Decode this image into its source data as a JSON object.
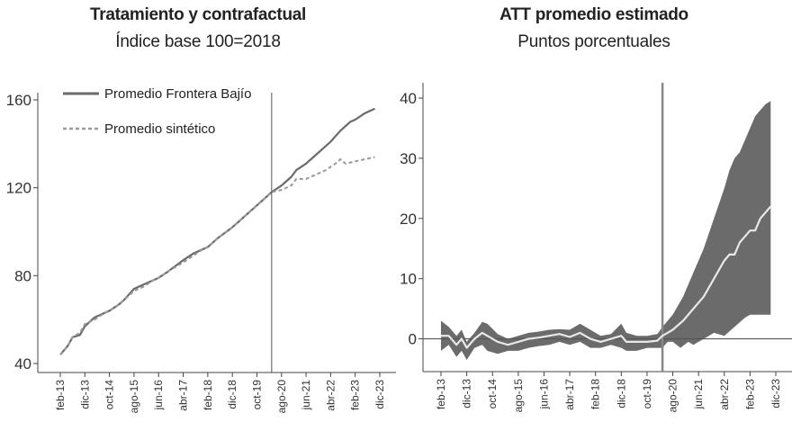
{
  "chart_data": [
    {
      "type": "line",
      "title": "Tratamiento y contrafactual",
      "subtitle": "Índice base 100=2018",
      "ylim": [
        40,
        160
      ],
      "yticks": [
        40,
        80,
        120,
        160
      ],
      "x_tick_labels": [
        "feb-13",
        "dic-13",
        "oct-14",
        "ago-15",
        "jun-16",
        "abr-17",
        "feb-18",
        "dic-18",
        "oct-19",
        "ago-20",
        "jun-21",
        "abr-22",
        "feb-23",
        "dic-23"
      ],
      "x_tick_positions": [
        0,
        10,
        20,
        30,
        40,
        50,
        60,
        70,
        80,
        90,
        100,
        110,
        120,
        130
      ],
      "vline_x": 86,
      "legend_position": "top-left",
      "series": [
        {
          "name": "Promedio Frontera Bajío",
          "style": "solid",
          "color": "#6a6a6a",
          "points": [
            [
              0,
              44
            ],
            [
              3,
              48
            ],
            [
              5,
              52
            ],
            [
              8,
              53
            ],
            [
              10,
              57
            ],
            [
              14,
              61
            ],
            [
              18,
              63
            ],
            [
              20,
              64
            ],
            [
              24,
              67
            ],
            [
              26,
              69
            ],
            [
              30,
              74
            ],
            [
              34,
              76
            ],
            [
              38,
              78
            ],
            [
              40,
              79
            ],
            [
              44,
              82
            ],
            [
              50,
              87
            ],
            [
              54,
              90
            ],
            [
              58,
              92
            ],
            [
              60,
              93
            ],
            [
              64,
              97
            ],
            [
              70,
              102
            ],
            [
              74,
              106
            ],
            [
              80,
              112
            ],
            [
              84,
              116
            ],
            [
              86,
              118
            ],
            [
              90,
              121
            ],
            [
              94,
              125
            ],
            [
              96,
              128
            ],
            [
              100,
              131
            ],
            [
              103,
              134
            ],
            [
              106,
              137
            ],
            [
              110,
              141
            ],
            [
              114,
              146
            ],
            [
              118,
              150
            ],
            [
              120,
              151
            ],
            [
              124,
              154
            ],
            [
              126,
              155
            ],
            [
              128,
              156
            ]
          ]
        },
        {
          "name": "Promedio sintético",
          "style": "dashed",
          "color": "#999999",
          "points": [
            [
              0,
              44
            ],
            [
              3,
              48
            ],
            [
              5,
              52
            ],
            [
              8,
              54
            ],
            [
              10,
              58
            ],
            [
              14,
              60
            ],
            [
              18,
              63
            ],
            [
              20,
              64
            ],
            [
              24,
              67
            ],
            [
              26,
              69
            ],
            [
              30,
              73
            ],
            [
              34,
              75
            ],
            [
              38,
              78
            ],
            [
              40,
              79
            ],
            [
              44,
              82
            ],
            [
              50,
              86
            ],
            [
              54,
              89
            ],
            [
              58,
              92
            ],
            [
              60,
              93
            ],
            [
              64,
              97
            ],
            [
              70,
              102
            ],
            [
              74,
              106
            ],
            [
              80,
              112
            ],
            [
              84,
              116
            ],
            [
              86,
              118
            ],
            [
              90,
              119
            ],
            [
              94,
              121
            ],
            [
              96,
              124
            ],
            [
              100,
              124
            ],
            [
              104,
              126
            ],
            [
              108,
              128
            ],
            [
              112,
              131
            ],
            [
              114,
              133
            ],
            [
              116,
              131
            ],
            [
              120,
              132
            ],
            [
              124,
              133
            ],
            [
              128,
              134
            ]
          ]
        }
      ]
    },
    {
      "type": "area",
      "title": "ATT promedio estimado",
      "subtitle": "Puntos porcentuales",
      "ylim": [
        -5,
        40
      ],
      "yticks": [
        0,
        10,
        20,
        30,
        40
      ],
      "x_tick_labels": [
        "feb-13",
        "dic-13",
        "oct-14",
        "ago-15",
        "jun-16",
        "abr-17",
        "feb-18",
        "dic-18",
        "oct-19",
        "ago-20",
        "jun-21",
        "abr-22",
        "feb-23",
        "dic-23"
      ],
      "x_tick_positions": [
        0,
        10,
        20,
        30,
        40,
        50,
        60,
        70,
        80,
        90,
        100,
        110,
        120,
        130
      ],
      "vline_x": 86,
      "hline_y": 0,
      "band_color": "#6b6b6b",
      "band_upper": [
        [
          0,
          3
        ],
        [
          3,
          2
        ],
        [
          6,
          0.5
        ],
        [
          8,
          1.5
        ],
        [
          10,
          -0.5
        ],
        [
          13,
          1
        ],
        [
          16,
          2.8
        ],
        [
          18,
          2.5
        ],
        [
          22,
          0.8
        ],
        [
          26,
          0
        ],
        [
          30,
          0.5
        ],
        [
          34,
          1
        ],
        [
          38,
          1.2
        ],
        [
          42,
          1.5
        ],
        [
          46,
          1.6
        ],
        [
          50,
          1.5
        ],
        [
          54,
          2.5
        ],
        [
          58,
          1.5
        ],
        [
          62,
          0.5
        ],
        [
          66,
          0.8
        ],
        [
          70,
          2.5
        ],
        [
          72,
          1
        ],
        [
          76,
          0.5
        ],
        [
          80,
          0.5
        ],
        [
          84,
          0.8
        ],
        [
          86,
          2
        ],
        [
          90,
          4
        ],
        [
          94,
          7
        ],
        [
          98,
          11
        ],
        [
          102,
          15
        ],
        [
          106,
          20
        ],
        [
          110,
          25
        ],
        [
          112,
          28
        ],
        [
          114,
          30
        ],
        [
          116,
          31
        ],
        [
          118,
          33
        ],
        [
          120,
          35
        ],
        [
          122,
          37
        ],
        [
          124,
          38
        ],
        [
          126,
          39
        ],
        [
          128,
          39.5
        ]
      ],
      "band_lower": [
        [
          0,
          -2
        ],
        [
          3,
          -1
        ],
        [
          6,
          -3
        ],
        [
          8,
          -2
        ],
        [
          10,
          -3.5
        ],
        [
          13,
          -1.5
        ],
        [
          16,
          -1
        ],
        [
          18,
          -2
        ],
        [
          22,
          -2.5
        ],
        [
          26,
          -2
        ],
        [
          30,
          -2
        ],
        [
          34,
          -1.5
        ],
        [
          38,
          -1.2
        ],
        [
          42,
          -1
        ],
        [
          46,
          -0.5
        ],
        [
          50,
          -1
        ],
        [
          54,
          -0.5
        ],
        [
          58,
          -1.5
        ],
        [
          62,
          -1.5
        ],
        [
          66,
          -1
        ],
        [
          70,
          -1.5
        ],
        [
          72,
          -2
        ],
        [
          76,
          -2
        ],
        [
          80,
          -1.5
        ],
        [
          84,
          -1.5
        ],
        [
          86,
          -1.5
        ],
        [
          88,
          -0.5
        ],
        [
          90,
          -0.5
        ],
        [
          93,
          -1.5
        ],
        [
          96,
          -0.5
        ],
        [
          98,
          -1
        ],
        [
          100,
          -0.5
        ],
        [
          102,
          0
        ],
        [
          106,
          1
        ],
        [
          110,
          0.5
        ],
        [
          114,
          2
        ],
        [
          118,
          3.5
        ],
        [
          120,
          4
        ],
        [
          124,
          4
        ],
        [
          128,
          4
        ]
      ],
      "series": [
        {
          "name": "ATT",
          "style": "solid",
          "color": "#e8e8e8",
          "points": [
            [
              0,
              0.5
            ],
            [
              3,
              0.5
            ],
            [
              6,
              -1
            ],
            [
              8,
              0
            ],
            [
              10,
              -1.5
            ],
            [
              13,
              0
            ],
            [
              16,
              1
            ],
            [
              18,
              0.5
            ],
            [
              22,
              -0.5
            ],
            [
              26,
              -1
            ],
            [
              30,
              -0.5
            ],
            [
              34,
              0
            ],
            [
              38,
              0.2
            ],
            [
              42,
              0.5
            ],
            [
              46,
              0.8
            ],
            [
              50,
              0.3
            ],
            [
              54,
              1
            ],
            [
              58,
              0
            ],
            [
              62,
              -0.5
            ],
            [
              66,
              0
            ],
            [
              70,
              0.5
            ],
            [
              72,
              -0.5
            ],
            [
              76,
              -0.5
            ],
            [
              80,
              -0.5
            ],
            [
              84,
              -0.3
            ],
            [
              86,
              0.5
            ],
            [
              90,
              1.5
            ],
            [
              94,
              3
            ],
            [
              98,
              5
            ],
            [
              102,
              7
            ],
            [
              106,
              10
            ],
            [
              110,
              13
            ],
            [
              112,
              14
            ],
            [
              114,
              14
            ],
            [
              116,
              16
            ],
            [
              118,
              17
            ],
            [
              120,
              18
            ],
            [
              122,
              18
            ],
            [
              124,
              20
            ],
            [
              126,
              21
            ],
            [
              128,
              22
            ]
          ]
        }
      ]
    }
  ]
}
